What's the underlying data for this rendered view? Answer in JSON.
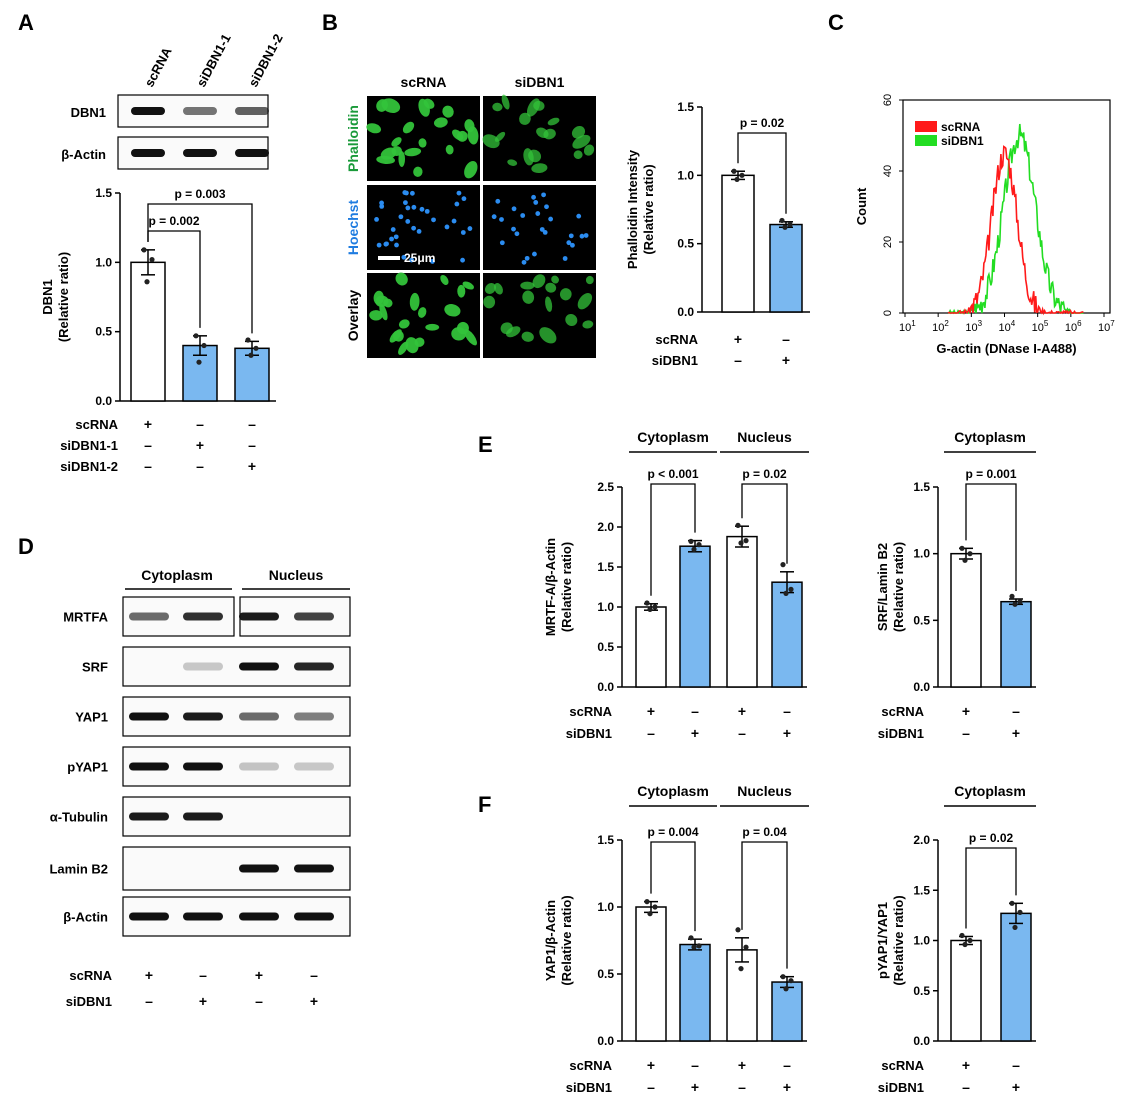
{
  "panels": {
    "A": "A",
    "B": "B",
    "C": "C",
    "D": "D",
    "E": "E",
    "F": "F"
  },
  "colors": {
    "sc": "#ffffff",
    "si": "#7ab8f0",
    "blot": "#111111",
    "histRed": "#ff1a1a",
    "histGreen": "#22dd22",
    "phalloidin": "#1a9a3a",
    "hoechst": "#1f7ce0",
    "fluorGreen": "#33c33a",
    "fluorBlue": "#2b8cf0"
  },
  "A": {
    "lanes": [
      "scRNA",
      "siDBN1-1",
      "siDBN1-2"
    ],
    "blots": [
      {
        "label": "DBN1",
        "intensity": [
          1.0,
          0.5,
          0.6
        ]
      },
      {
        "label": "β-Actin",
        "intensity": [
          1.0,
          1.0,
          1.0
        ]
      }
    ],
    "conditions": [
      {
        "label": "scRNA",
        "marks": [
          "+",
          "–",
          "–"
        ]
      },
      {
        "label": "siDBN1-1",
        "marks": [
          "–",
          "+",
          "–"
        ]
      },
      {
        "label": "siDBN1-2",
        "marks": [
          "–",
          "–",
          "+"
        ]
      }
    ]
  },
  "B": {
    "columns": [
      "scRNA",
      "siDBN1"
    ],
    "rows": [
      "Phalloidin",
      "Hoechst",
      "Overlay"
    ],
    "scalebar": "25μm",
    "conditions": [
      {
        "label": "scRNA",
        "marks": [
          "+",
          "–"
        ]
      },
      {
        "label": "siDBN1",
        "marks": [
          "–",
          "+"
        ]
      }
    ]
  },
  "C": {
    "ylabel": "Count",
    "xlabel": "G-actin (DNase I-A488)",
    "yticks": [
      "0",
      "20",
      "40",
      "60"
    ],
    "xticks": [
      {
        "b": "10",
        "e": "1"
      },
      {
        "b": "10",
        "e": "2"
      },
      {
        "b": "10",
        "e": "3"
      },
      {
        "b": "10",
        "e": "4"
      },
      {
        "b": "10",
        "e": "5"
      },
      {
        "b": "10",
        "e": "6"
      },
      {
        "b": "10",
        "e": "7"
      }
    ],
    "legend": [
      "scRNA",
      "siDBN1"
    ]
  },
  "D": {
    "groups": [
      "Cytoplasm",
      "Nucleus"
    ],
    "blots": [
      {
        "label": "MRTFA",
        "intensity": [
          0.55,
          0.85,
          0.95,
          0.75
        ]
      },
      {
        "label": "SRF",
        "intensity": [
          0.0,
          0.08,
          1.0,
          0.9
        ]
      },
      {
        "label": "YAP1",
        "intensity": [
          1.0,
          0.95,
          0.55,
          0.45
        ]
      },
      {
        "label": "pYAP1",
        "intensity": [
          1.0,
          1.0,
          0.1,
          0.08
        ]
      },
      {
        "label": "α-Tubulin",
        "intensity": [
          0.95,
          0.95,
          0.0,
          0.0
        ]
      },
      {
        "label": "Lamin B2",
        "intensity": [
          0.0,
          0.0,
          1.0,
          1.0
        ]
      },
      {
        "label": "β-Actin",
        "intensity": [
          1.0,
          1.0,
          1.0,
          1.0
        ]
      }
    ],
    "conditions": [
      {
        "label": "scRNA",
        "marks": [
          "+",
          "–",
          "+",
          "–"
        ]
      },
      {
        "label": "siDBN1",
        "marks": [
          "–",
          "+",
          "–",
          "+"
        ]
      }
    ]
  },
  "chart_data": [
    {
      "id": "A-bar",
      "type": "bar",
      "categories": [
        "scRNA",
        "siDBN1-1",
        "siDBN1-2"
      ],
      "values": [
        1.0,
        0.4,
        0.38
      ],
      "errors": [
        0.09,
        0.07,
        0.05
      ],
      "points": [
        [
          1.09,
          1.02,
          0.86
        ],
        [
          0.47,
          0.4,
          0.28
        ],
        [
          0.44,
          0.38,
          0.33
        ]
      ],
      "ylabel": "DBN1",
      "ylabel2": "(Relative ratio)",
      "ylim": [
        0,
        1.5
      ],
      "yticks": [
        "0.0",
        "0.5",
        "1.0",
        "1.5"
      ],
      "pvalues": [
        {
          "from": 0,
          "to": 1,
          "text": "p = 0.002"
        },
        {
          "from": 0,
          "to": 2,
          "text": "p = 0.003"
        }
      ]
    },
    {
      "id": "B-bar",
      "type": "bar",
      "categories": [
        "scRNA",
        "siDBN1"
      ],
      "values": [
        1.0,
        0.64
      ],
      "errors": [
        0.03,
        0.02
      ],
      "points": [
        [
          1.03,
          1.0,
          0.97
        ],
        [
          0.67,
          0.64,
          0.62
        ]
      ],
      "ylabel": "Phalloidin Intensity",
      "ylabel2": "(Relative ratio)",
      "ylim": [
        0,
        1.5
      ],
      "yticks": [
        "0.0",
        "0.5",
        "1.0",
        "1.5"
      ],
      "pvalues": [
        {
          "from": 0,
          "to": 1,
          "text": "p = 0.02"
        }
      ]
    },
    {
      "id": "E-left",
      "type": "bar",
      "categories": [
        "Cytoplasm scRNA",
        "Cytoplasm siDBN1",
        "Nucleus scRNA",
        "Nucleus siDBN1"
      ],
      "values": [
        1.0,
        1.76,
        1.88,
        1.31
      ],
      "errors": [
        0.04,
        0.07,
        0.13,
        0.13
      ],
      "points": [
        [
          1.05,
          1.0,
          0.97
        ],
        [
          1.82,
          1.78,
          1.72
        ],
        [
          2.02,
          1.83,
          1.8
        ],
        [
          1.53,
          1.22,
          1.17
        ]
      ],
      "ylabel": "MRTF-A/β-Actin",
      "ylabel2": "(Relative ratio)",
      "ylim": [
        0,
        2.5
      ],
      "yticks": [
        "0.0",
        "0.5",
        "1.0",
        "1.5",
        "2.0",
        "2.5"
      ],
      "groups": [
        "Cytoplasm",
        "Nucleus"
      ],
      "pvalues": [
        {
          "from": 0,
          "to": 1,
          "text": "p < 0.001"
        },
        {
          "from": 2,
          "to": 3,
          "text": "p = 0.02"
        }
      ]
    },
    {
      "id": "E-right",
      "type": "bar",
      "categories": [
        "scRNA",
        "siDBN1"
      ],
      "values": [
        1.0,
        0.64
      ],
      "errors": [
        0.04,
        0.02
      ],
      "points": [
        [
          1.04,
          1.0,
          0.95
        ],
        [
          0.68,
          0.64,
          0.62
        ]
      ],
      "ylabel": "SRF/Lamin B2",
      "ylabel2": "(Relative ratio)",
      "ylim": [
        0,
        1.5
      ],
      "yticks": [
        "0.0",
        "0.5",
        "1.0",
        "1.5"
      ],
      "groups": [
        "Cytoplasm"
      ],
      "pvalues": [
        {
          "from": 0,
          "to": 1,
          "text": "p = 0.001"
        }
      ]
    },
    {
      "id": "F-left",
      "type": "bar",
      "categories": [
        "Cytoplasm scRNA",
        "Cytoplasm siDBN1",
        "Nucleus scRNA",
        "Nucleus siDBN1"
      ],
      "values": [
        1.0,
        0.72,
        0.68,
        0.44
      ],
      "errors": [
        0.04,
        0.04,
        0.09,
        0.04
      ],
      "points": [
        [
          1.04,
          1.0,
          0.95
        ],
        [
          0.77,
          0.71,
          0.7
        ],
        [
          0.83,
          0.7,
          0.54
        ],
        [
          0.48,
          0.45,
          0.39
        ]
      ],
      "ylabel": "YAP1/β-Actin",
      "ylabel2": "(Relative ratio)",
      "ylim": [
        0,
        1.5
      ],
      "yticks": [
        "0.0",
        "0.5",
        "1.0",
        "1.5"
      ],
      "groups": [
        "Cytoplasm",
        "Nucleus"
      ],
      "pvalues": [
        {
          "from": 0,
          "to": 1,
          "text": "p = 0.004"
        },
        {
          "from": 2,
          "to": 3,
          "text": "p = 0.04"
        }
      ]
    },
    {
      "id": "F-right",
      "type": "bar",
      "categories": [
        "scRNA",
        "siDBN1"
      ],
      "values": [
        1.0,
        1.27
      ],
      "errors": [
        0.04,
        0.1
      ],
      "points": [
        [
          1.05,
          1.0,
          0.96
        ],
        [
          1.37,
          1.28,
          1.13
        ]
      ],
      "ylabel": "pYAP1/YAP1",
      "ylabel2": "(Relative ratio)",
      "ylim": [
        0,
        2.0
      ],
      "yticks": [
        "0.0",
        "0.5",
        "1.0",
        "1.5",
        "2.0"
      ],
      "groups": [
        "Cytoplasm"
      ],
      "pvalues": [
        {
          "from": 0,
          "to": 1,
          "text": "p = 0.02"
        }
      ]
    },
    {
      "id": "C-hist",
      "type": "area",
      "series": [
        {
          "name": "scRNA",
          "peak": 4.0,
          "sd": 0.38,
          "max": 45
        },
        {
          "name": "siDBN1",
          "peak": 4.45,
          "sd": 0.48,
          "max": 50
        }
      ],
      "xlim": [
        1,
        7
      ],
      "ylim": [
        0,
        60
      ],
      "xlog": true
    }
  ]
}
